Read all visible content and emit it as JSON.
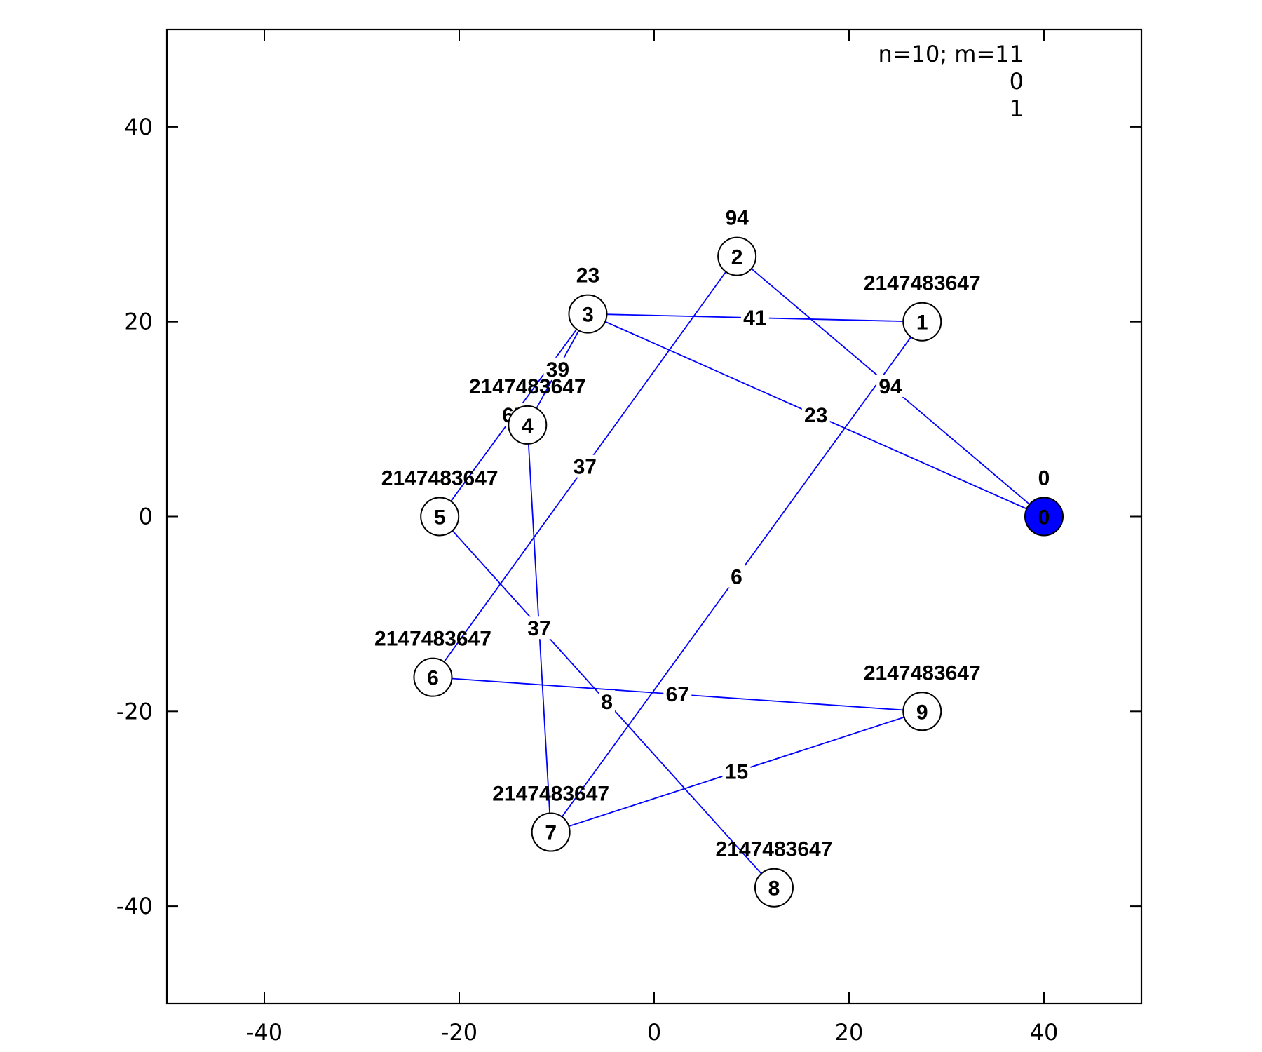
{
  "chart_data": {
    "type": "graph",
    "xlim": [
      -50,
      50
    ],
    "ylim": [
      -50,
      50
    ],
    "x_ticks": [
      -40,
      -20,
      0,
      20,
      40
    ],
    "y_ticks": [
      -40,
      -20,
      0,
      20,
      40
    ],
    "info_lines": [
      "n=10; m=11",
      "0",
      "1"
    ],
    "colors": {
      "edge": "#0000ff",
      "source_node": "#0000ff",
      "node_fill": "#ffffff",
      "border": "#000000"
    },
    "nodes": [
      {
        "id": "0",
        "x": 40,
        "y": 0,
        "value": "0",
        "source": true
      },
      {
        "id": "1",
        "x": 27.5,
        "y": 20,
        "value": "2147483647"
      },
      {
        "id": "2",
        "x": 8.5,
        "y": 26.7,
        "value": "94"
      },
      {
        "id": "3",
        "x": -6.8,
        "y": 20.8,
        "value": "23"
      },
      {
        "id": "4",
        "x": -13,
        "y": 9.4,
        "value": "2147483647"
      },
      {
        "id": "5",
        "x": -22,
        "y": 0,
        "value": "2147483647"
      },
      {
        "id": "6",
        "x": -22.7,
        "y": -16.5,
        "value": "2147483647"
      },
      {
        "id": "7",
        "x": -10.6,
        "y": -32.4,
        "value": "2147483647"
      },
      {
        "id": "8",
        "x": 12.3,
        "y": -38.1,
        "value": "2147483647"
      },
      {
        "id": "9",
        "x": 27.5,
        "y": -20,
        "value": "2147483647"
      }
    ],
    "edges": [
      {
        "from": "0",
        "to": "2",
        "weight": "94"
      },
      {
        "from": "0",
        "to": "3",
        "weight": "23"
      },
      {
        "from": "3",
        "to": "1",
        "weight": "41"
      },
      {
        "from": "3",
        "to": "4",
        "weight": "39"
      },
      {
        "from": "3",
        "to": "5",
        "weight": "65"
      },
      {
        "from": "2",
        "to": "6",
        "weight": "37"
      },
      {
        "from": "1",
        "to": "7",
        "weight": "6"
      },
      {
        "from": "5",
        "to": "8",
        "weight": "8"
      },
      {
        "from": "4",
        "to": "7",
        "weight": "37"
      },
      {
        "from": "6",
        "to": "9",
        "weight": "67"
      },
      {
        "from": "7",
        "to": "9",
        "weight": "15"
      }
    ]
  }
}
